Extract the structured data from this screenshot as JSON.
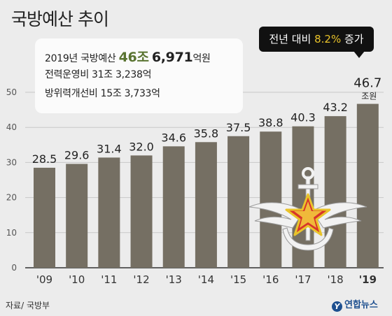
{
  "title": "국방예산 추이",
  "info": {
    "line1_prefix": "2019년 국방예산 ",
    "line1_amount_jo": "46조",
    "line1_amount_eok": "6,971",
    "line1_suffix": "억원",
    "line2": "전력운영비 31조 3,238억",
    "line3": "방위력개선비 15조 3,733억"
  },
  "callout": {
    "prefix": "전년 대비 ",
    "value": "8.2%",
    "suffix": " 증가"
  },
  "source": "자료/ 국방부",
  "logo": {
    "mark": "Y",
    "text": "연합뉴스"
  },
  "colors": {
    "bar": "#756f63",
    "highlight_bar": "#756f63",
    "accent_green": "#5a7431",
    "accent_yellow": "#e9c32a",
    "background": "#ececec"
  },
  "emblem_icon": "korean-defense-emblem-icon",
  "chart_data": {
    "type": "bar",
    "categories": [
      "'09",
      "'10",
      "'11",
      "'12",
      "'13",
      "'14",
      "'15",
      "'16",
      "'17",
      "'18",
      "'19"
    ],
    "values": [
      28.5,
      29.6,
      31.4,
      32.0,
      34.6,
      35.8,
      37.5,
      38.8,
      40.3,
      43.2,
      46.7
    ],
    "data_labels": [
      "28.5",
      "29.6",
      "31.4",
      "32.0",
      "34.6",
      "35.8",
      "37.5",
      "38.8",
      "40.3",
      "43.2",
      "46.7"
    ],
    "last_unit": "조원",
    "y_ticks": [
      0,
      10,
      20,
      30,
      40,
      50
    ],
    "ylim": [
      0,
      50
    ],
    "title": "국방예산 추이",
    "xlabel": "",
    "ylabel": "",
    "grid": true
  }
}
